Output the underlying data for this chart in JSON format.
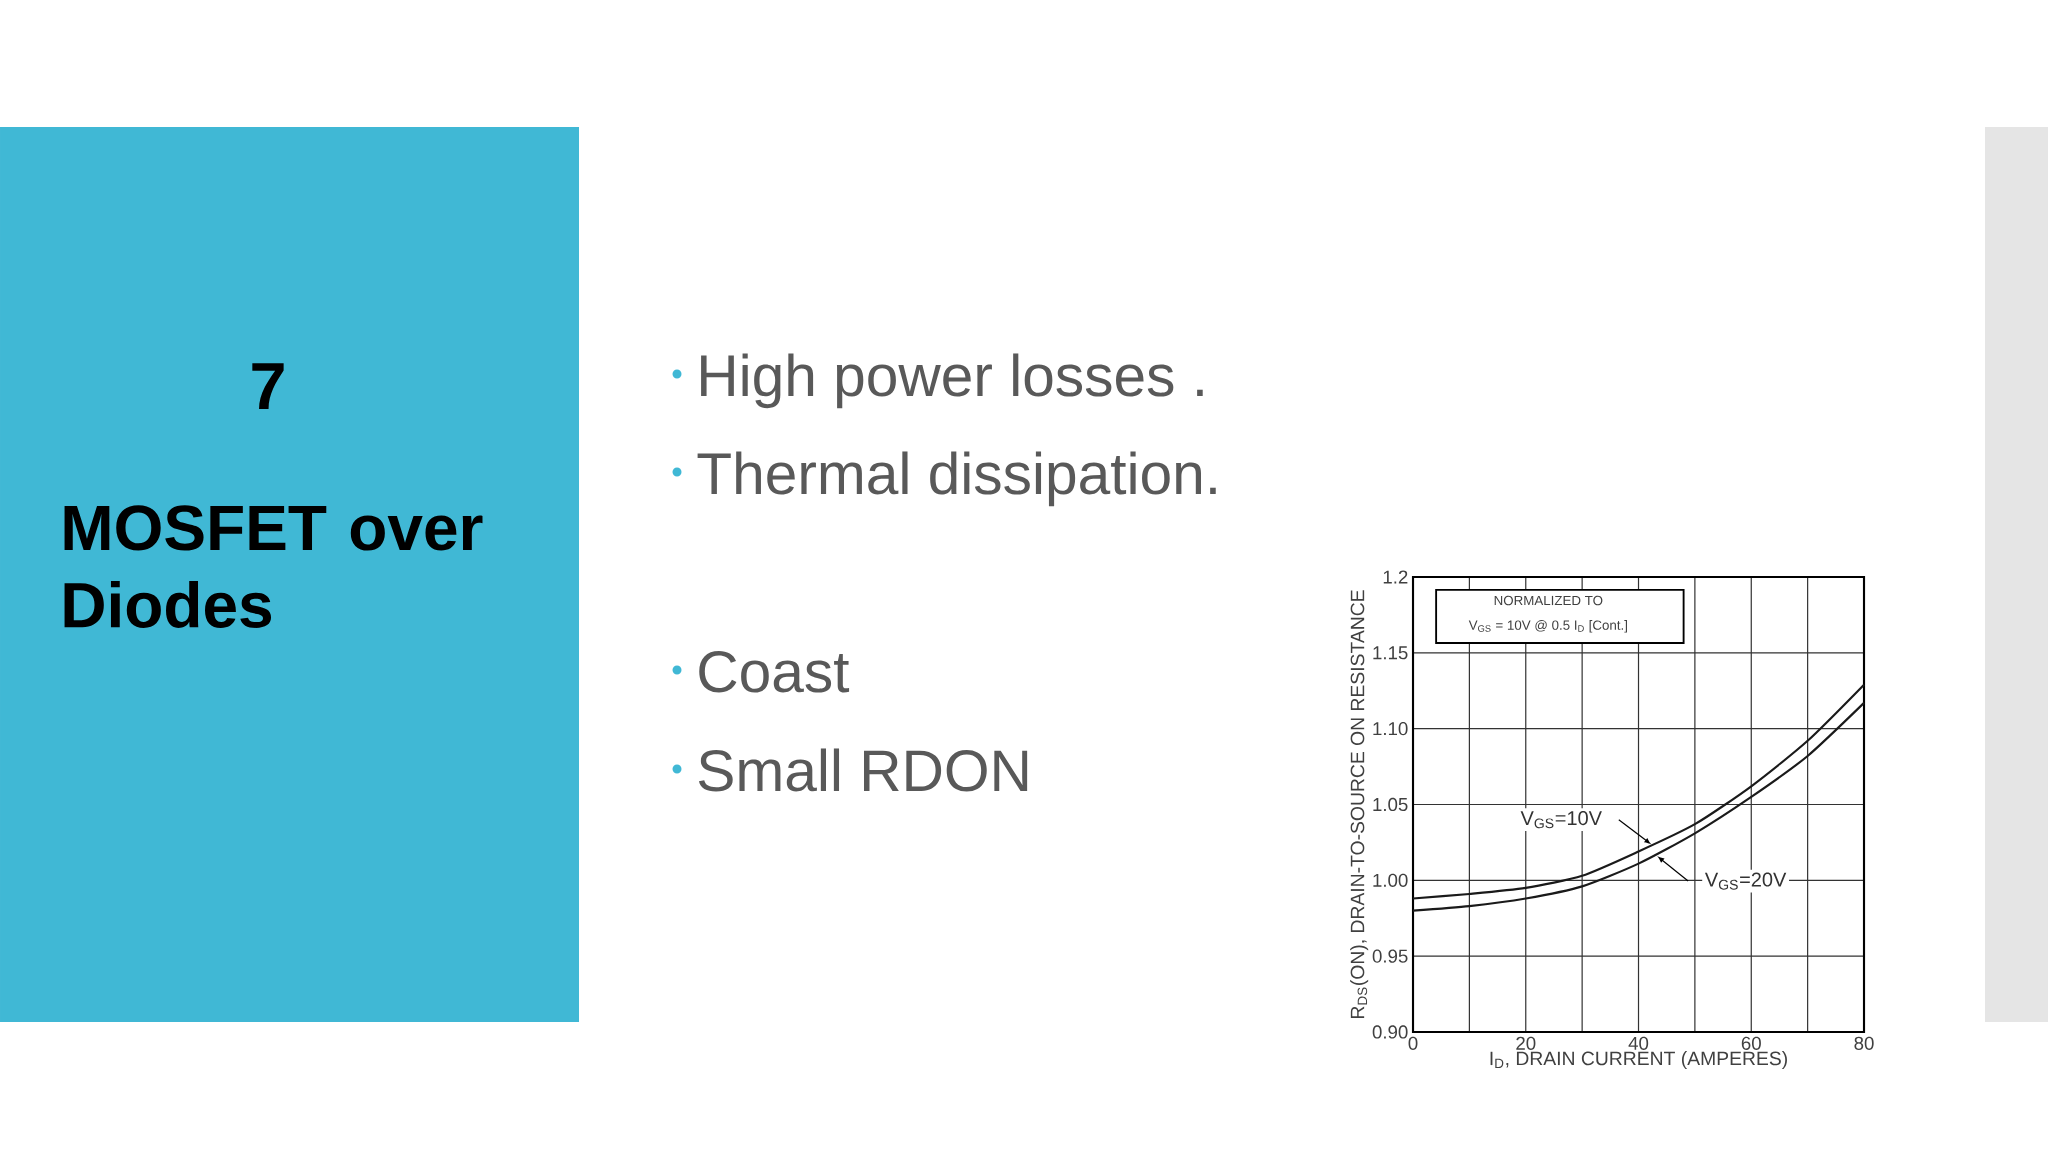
{
  "chart_data": {
    "type": "line",
    "title": "MOSFET over Diodes",
    "xlabel": "I$_{D}$, DRAIN CURRENT (AMPERES)",
    "ylabel": "R$_{DS}$(ON), DRAIN-TO-SOURCE ON RESISTANCE",
    "x": [
      0,
      10,
      20,
      30,
      40,
      50,
      60,
      70,
      80
    ],
    "series": [
      {
        "name": "V$_{GS}$=10V",
        "color": "#1a1a1a",
        "values": [
          0.988,
          0.991,
          0.995,
          1.003,
          1.019,
          1.037,
          1.062,
          1.092,
          1.129
        ]
      },
      {
        "name": "V$_{GS}$=20V",
        "color": "#1a1a1a",
        "values": [
          0.98,
          0.983,
          0.988,
          0.996,
          1.011,
          1.031,
          1.055,
          1.082,
          1.117
        ]
      }
    ],
    "xlim": [
      0,
      80
    ],
    "xticks": [
      0,
      {
        "value": 10,
        "label": null
      },
      20,
      {
        "value": 30,
        "label": null
      },
      40,
      {
        "value": 50,
        "label": null
      },
      60,
      {
        "value": 70,
        "label": null
      },
      80
    ],
    "ylim": [
      0.9,
      1.2
    ],
    "yticks": [
      {
        "value": 0.9,
        "label": "0.90"
      },
      0.95,
      {
        "value": 1.0,
        "label": "1.00"
      },
      1.05,
      {
        "value": 1.1,
        "label": "1.10"
      },
      1.15,
      1.2
    ],
    "grid": true,
    "annotations": [
      "7",
      "High power losses .",
      "Thermal dissipation.",
      "Coast",
      "Small RDON",
      "NORMALIZED  TO",
      "V$_{GS}$ = 10V  @  0.5  I$_{D}$ [Cont.]"
    ]
  }
}
